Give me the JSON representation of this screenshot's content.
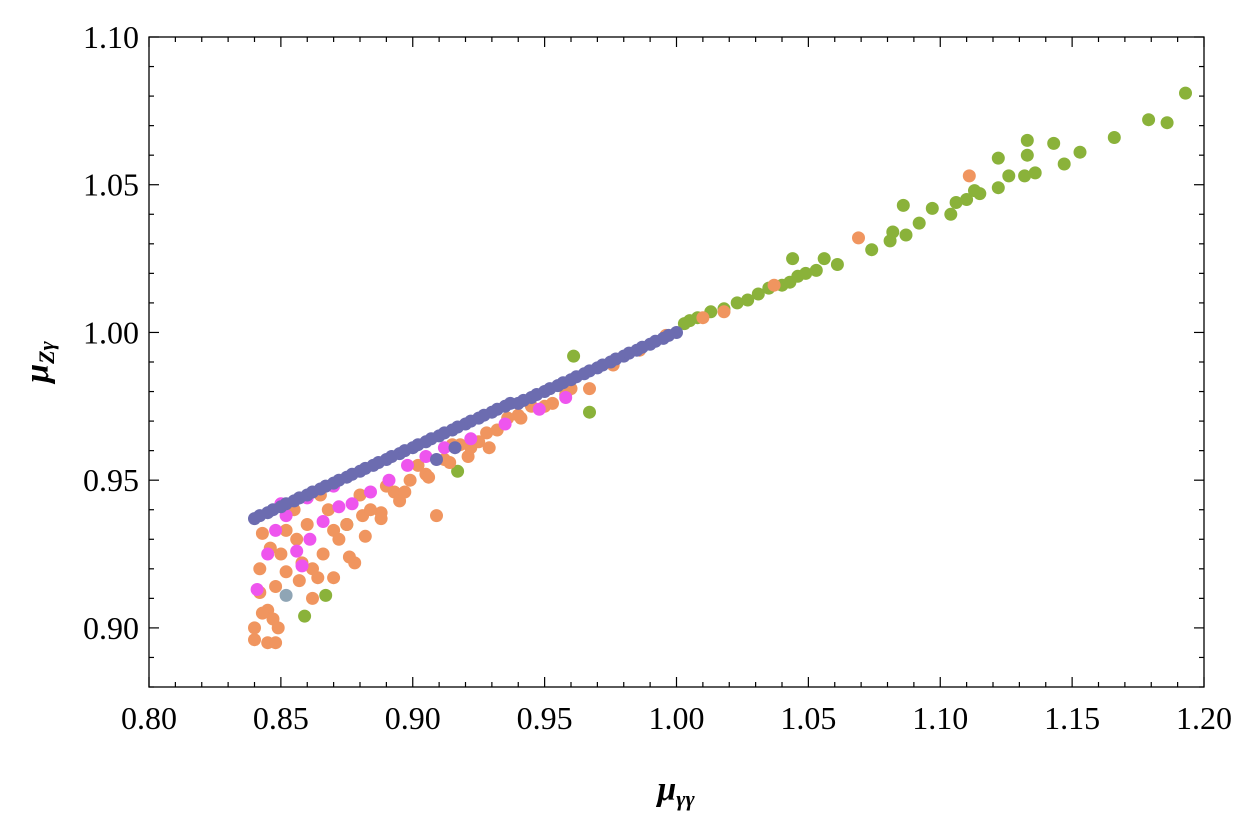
{
  "chart_data": {
    "type": "scatter",
    "title": "",
    "xlabel": {
      "main": "μ",
      "sub": "γγ"
    },
    "ylabel": {
      "main": "μ",
      "sub": "Zγ"
    },
    "xlim": [
      0.8,
      1.2
    ],
    "ylim": [
      0.88,
      1.1
    ],
    "xticks": [
      "0.80",
      "0.85",
      "0.90",
      "0.95",
      "1.00",
      "1.05",
      "1.10",
      "1.15",
      "1.20"
    ],
    "yticks": [
      "0.90",
      "0.95",
      "1.00",
      "1.05",
      "1.10"
    ],
    "grid": false,
    "legend": "none",
    "series": [
      {
        "color": "#8ab23a",
        "points": [
          [
            1.193,
            1.081
          ],
          [
            1.186,
            1.071
          ],
          [
            1.179,
            1.072
          ],
          [
            1.166,
            1.066
          ],
          [
            1.153,
            1.061
          ],
          [
            1.147,
            1.057
          ],
          [
            1.143,
            1.064
          ],
          [
            1.136,
            1.054
          ],
          [
            1.133,
            1.065
          ],
          [
            1.133,
            1.06
          ],
          [
            1.132,
            1.053
          ],
          [
            1.126,
            1.053
          ],
          [
            1.122,
            1.059
          ],
          [
            1.122,
            1.049
          ],
          [
            1.115,
            1.047
          ],
          [
            1.113,
            1.048
          ],
          [
            1.11,
            1.045
          ],
          [
            1.106,
            1.044
          ],
          [
            1.104,
            1.04
          ],
          [
            1.097,
            1.042
          ],
          [
            1.092,
            1.037
          ],
          [
            1.087,
            1.033
          ],
          [
            1.086,
            1.043
          ],
          [
            1.082,
            1.034
          ],
          [
            1.081,
            1.031
          ],
          [
            1.074,
            1.028
          ],
          [
            1.061,
            1.023
          ],
          [
            1.056,
            1.025
          ],
          [
            1.053,
            1.021
          ],
          [
            1.049,
            1.02
          ],
          [
            1.046,
            1.019
          ],
          [
            1.044,
            1.025
          ],
          [
            1.043,
            1.017
          ],
          [
            1.04,
            1.016
          ],
          [
            1.035,
            1.015
          ],
          [
            1.031,
            1.013
          ],
          [
            1.027,
            1.011
          ],
          [
            1.023,
            1.01
          ],
          [
            1.018,
            1.008
          ],
          [
            1.013,
            1.007
          ],
          [
            1.008,
            1.005
          ],
          [
            1.005,
            1.004
          ],
          [
            1.003,
            1.003
          ],
          [
            0.961,
            0.992
          ],
          [
            0.967,
            0.973
          ],
          [
            0.917,
            0.953
          ],
          [
            0.867,
            0.911
          ],
          [
            0.859,
            0.904
          ],
          [
            0.875,
            0.935
          ]
        ]
      },
      {
        "color": "#f0955f",
        "points": [
          [
            1.111,
            1.053
          ],
          [
            1.069,
            1.032
          ],
          [
            1.037,
            1.016
          ],
          [
            1.018,
            1.007
          ],
          [
            1.01,
            1.005
          ],
          [
            0.996,
            0.999
          ],
          [
            0.986,
            0.994
          ],
          [
            0.976,
            0.989
          ],
          [
            0.967,
            0.981
          ],
          [
            0.958,
            0.979
          ],
          [
            0.953,
            0.976
          ],
          [
            0.945,
            0.975
          ],
          [
            0.94,
            0.972
          ],
          [
            0.936,
            0.971
          ],
          [
            0.928,
            0.966
          ],
          [
            0.925,
            0.963
          ],
          [
            0.929,
            0.961
          ],
          [
            0.921,
            0.958
          ],
          [
            0.918,
            0.962
          ],
          [
            0.912,
            0.957
          ],
          [
            0.909,
            0.938
          ],
          [
            0.905,
            0.952
          ],
          [
            0.899,
            0.95
          ],
          [
            0.893,
            0.946
          ],
          [
            0.888,
            0.939
          ],
          [
            0.881,
            0.938
          ],
          [
            0.875,
            0.935
          ],
          [
            0.87,
            0.933
          ],
          [
            0.866,
            0.925
          ],
          [
            0.878,
            0.922
          ],
          [
            0.864,
            0.917
          ],
          [
            0.862,
            0.92
          ],
          [
            0.857,
            0.916
          ],
          [
            0.852,
            0.919
          ],
          [
            0.848,
            0.914
          ],
          [
            0.845,
            0.906
          ],
          [
            0.843,
            0.905
          ],
          [
            0.847,
            0.903
          ],
          [
            0.84,
            0.9
          ],
          [
            0.849,
            0.9
          ],
          [
            0.84,
            0.896
          ],
          [
            0.845,
            0.895
          ],
          [
            0.848,
            0.895
          ],
          [
            0.842,
            0.912
          ],
          [
            0.85,
            0.925
          ],
          [
            0.856,
            0.93
          ],
          [
            0.843,
            0.932
          ],
          [
            0.86,
            0.935
          ],
          [
            0.868,
            0.94
          ],
          [
            0.88,
            0.945
          ],
          [
            0.89,
            0.948
          ],
          [
            0.902,
            0.955
          ],
          [
            0.915,
            0.962
          ],
          [
            0.855,
            0.94
          ],
          [
            0.865,
            0.945
          ],
          [
            0.872,
            0.93
          ],
          [
            0.884,
            0.94
          ],
          [
            0.895,
            0.943
          ],
          [
            0.842,
            0.92
          ],
          [
            0.846,
            0.927
          ],
          [
            0.852,
            0.933
          ],
          [
            0.858,
            0.922
          ],
          [
            0.862,
            0.91
          ],
          [
            0.87,
            0.917
          ],
          [
            0.876,
            0.924
          ],
          [
            0.882,
            0.931
          ],
          [
            0.888,
            0.937
          ],
          [
            0.897,
            0.946
          ],
          [
            0.906,
            0.951
          ],
          [
            0.914,
            0.956
          ],
          [
            0.922,
            0.961
          ],
          [
            0.932,
            0.967
          ],
          [
            0.941,
            0.971
          ],
          [
            0.95,
            0.975
          ],
          [
            0.96,
            0.981
          ]
        ]
      },
      {
        "color": "#ee55ee",
        "points": [
          [
            0.841,
            0.913
          ],
          [
            0.845,
            0.925
          ],
          [
            0.848,
            0.933
          ],
          [
            0.852,
            0.938
          ],
          [
            0.856,
            0.926
          ],
          [
            0.858,
            0.921
          ],
          [
            0.861,
            0.93
          ],
          [
            0.866,
            0.936
          ],
          [
            0.872,
            0.941
          ],
          [
            0.877,
            0.942
          ],
          [
            0.884,
            0.946
          ],
          [
            0.891,
            0.95
          ],
          [
            0.898,
            0.955
          ],
          [
            0.905,
            0.958
          ],
          [
            0.912,
            0.961
          ],
          [
            0.922,
            0.964
          ],
          [
            0.935,
            0.969
          ],
          [
            0.948,
            0.974
          ],
          [
            0.958,
            0.978
          ],
          [
            0.85,
            0.942
          ],
          [
            0.86,
            0.944
          ],
          [
            0.87,
            0.948
          ]
        ]
      },
      {
        "color": "#8fa5b5",
        "points": [
          [
            0.852,
            0.911
          ]
        ]
      },
      {
        "color": "#6c6cb0",
        "points": [
          [
            0.84,
            0.937
          ],
          [
            0.845,
            0.939
          ],
          [
            0.85,
            0.941
          ],
          [
            0.855,
            0.943
          ],
          [
            0.86,
            0.945
          ],
          [
            0.865,
            0.947
          ],
          [
            0.87,
            0.949
          ],
          [
            0.875,
            0.951
          ],
          [
            0.88,
            0.953
          ],
          [
            0.885,
            0.955
          ],
          [
            0.89,
            0.957
          ],
          [
            0.895,
            0.959
          ],
          [
            0.9,
            0.961
          ],
          [
            0.905,
            0.963
          ],
          [
            0.91,
            0.965
          ],
          [
            0.915,
            0.967
          ],
          [
            0.92,
            0.969
          ],
          [
            0.925,
            0.971
          ],
          [
            0.93,
            0.973
          ],
          [
            0.935,
            0.975
          ],
          [
            0.94,
            0.976
          ],
          [
            0.945,
            0.978
          ],
          [
            0.95,
            0.98
          ],
          [
            0.955,
            0.982
          ],
          [
            0.96,
            0.984
          ],
          [
            0.965,
            0.986
          ],
          [
            0.97,
            0.988
          ],
          [
            0.975,
            0.99
          ],
          [
            0.98,
            0.992
          ],
          [
            0.985,
            0.994
          ],
          [
            0.99,
            0.996
          ],
          [
            0.995,
            0.998
          ],
          [
            1.0,
            1.0
          ],
          [
            0.842,
            0.938
          ],
          [
            0.847,
            0.94
          ],
          [
            0.852,
            0.942
          ],
          [
            0.857,
            0.944
          ],
          [
            0.862,
            0.946
          ],
          [
            0.867,
            0.948
          ],
          [
            0.872,
            0.95
          ],
          [
            0.877,
            0.952
          ],
          [
            0.882,
            0.954
          ],
          [
            0.887,
            0.956
          ],
          [
            0.892,
            0.958
          ],
          [
            0.897,
            0.96
          ],
          [
            0.902,
            0.962
          ],
          [
            0.907,
            0.964
          ],
          [
            0.912,
            0.966
          ],
          [
            0.917,
            0.968
          ],
          [
            0.922,
            0.97
          ],
          [
            0.927,
            0.972
          ],
          [
            0.932,
            0.974
          ],
          [
            0.937,
            0.976
          ],
          [
            0.942,
            0.977
          ],
          [
            0.947,
            0.979
          ],
          [
            0.952,
            0.981
          ],
          [
            0.957,
            0.983
          ],
          [
            0.962,
            0.985
          ],
          [
            0.967,
            0.987
          ],
          [
            0.972,
            0.989
          ],
          [
            0.977,
            0.991
          ],
          [
            0.982,
            0.993
          ],
          [
            0.987,
            0.995
          ],
          [
            0.992,
            0.997
          ],
          [
            0.997,
            0.999
          ],
          [
            0.916,
            0.961
          ],
          [
            0.909,
            0.957
          ]
        ]
      }
    ]
  }
}
